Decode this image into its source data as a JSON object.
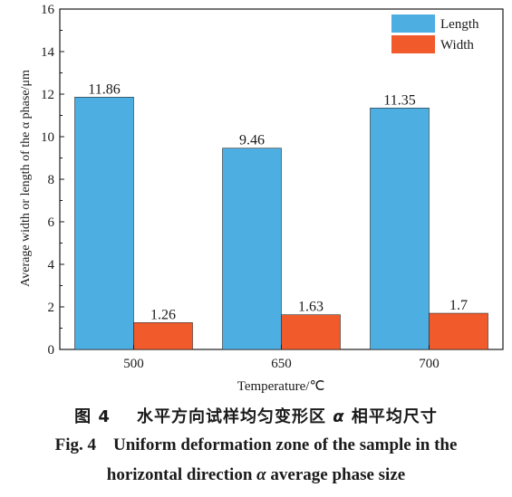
{
  "chart_data": {
    "type": "bar",
    "categories": [
      "500",
      "650",
      "700"
    ],
    "series": [
      {
        "name": "Length",
        "values": [
          11.86,
          9.46,
          11.35
        ],
        "labels": [
          "11.86",
          "9.46",
          "11.35"
        ],
        "color": "#4daee2"
      },
      {
        "name": "Width",
        "values": [
          1.26,
          1.63,
          1.7
        ],
        "labels": [
          "1.26",
          "1.63",
          "1.7"
        ],
        "color": "#f15a2b"
      }
    ],
    "xlabel": "Temperature/℃",
    "ylabel": "Average width or length of the α phase/μm",
    "ylim": [
      0,
      16
    ],
    "yticks": [
      0,
      2,
      4,
      6,
      8,
      10,
      12,
      14,
      16
    ],
    "grid": false,
    "legend": "top-right"
  },
  "caption": {
    "cn_prefix": "图 4",
    "cn_text_a": "水平方向试样均匀变形区",
    "cn_alpha": "α",
    "cn_text_b": "相平均尺寸",
    "en_line1": "Fig. 4    Uniform deformation zone of the sample in the",
    "en_line2_a": "horizontal direction",
    "en_alpha": "α",
    "en_line2_b": "average phase size"
  }
}
